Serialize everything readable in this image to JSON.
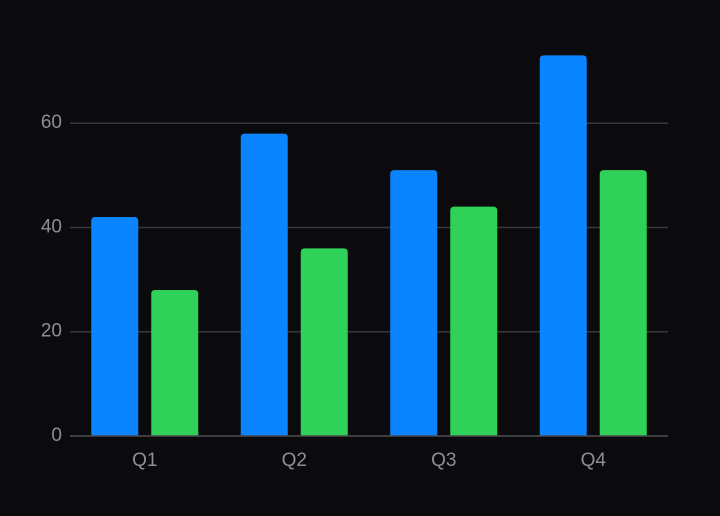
{
  "chart_data": {
    "type": "bar",
    "categories": [
      "Q1",
      "Q2",
      "Q3",
      "Q4"
    ],
    "series": [
      {
        "color": "#0a84ff",
        "values": [
          42,
          58,
          51,
          73
        ]
      },
      {
        "color": "#30d158",
        "values": [
          28,
          36,
          44,
          51
        ]
      }
    ],
    "ylim": [
      0,
      75
    ],
    "yticks": [
      0,
      20,
      40,
      60
    ],
    "grid": true
  }
}
